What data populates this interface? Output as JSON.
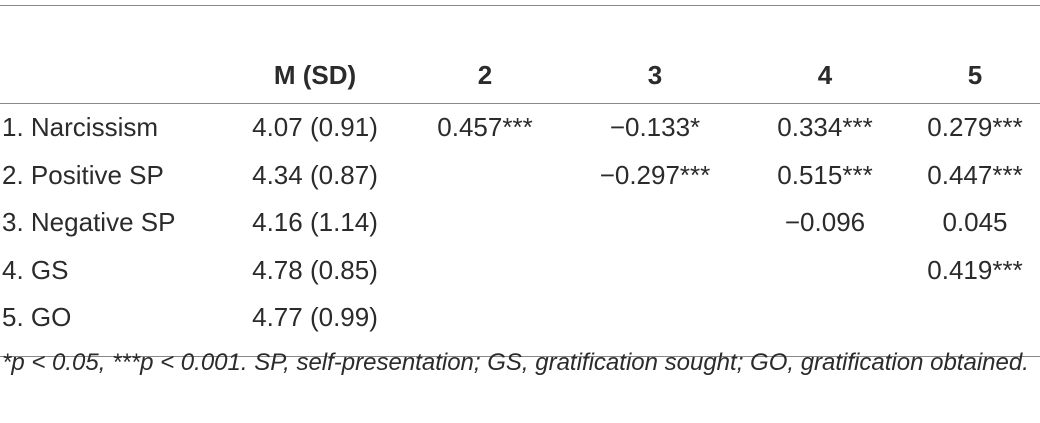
{
  "table": {
    "header": [
      null,
      "M (SD)",
      "2",
      "3",
      "4",
      "5"
    ],
    "rows": [
      [
        "1. Narcissism",
        "4.07 (0.91)",
        "0.457***",
        "−0.133*",
        "0.334***",
        "0.279***"
      ],
      [
        "2. Positive SP",
        "4.34 (0.87)",
        null,
        "−0.297***",
        "0.515***",
        "0.447***"
      ],
      [
        "3. Negative SP",
        "4.16 (1.14)",
        null,
        null,
        "−0.096",
        "0.045"
      ],
      [
        "4. GS",
        "4.78 (0.85)",
        null,
        null,
        null,
        "0.419***"
      ],
      [
        "5. GO",
        "4.77 (0.99)",
        null,
        null,
        null,
        null
      ]
    ]
  },
  "footnote": "*p < 0.05, ***p < 0.001. SP, self-presentation; GS, gratification sought; GO, gratification obtained."
}
